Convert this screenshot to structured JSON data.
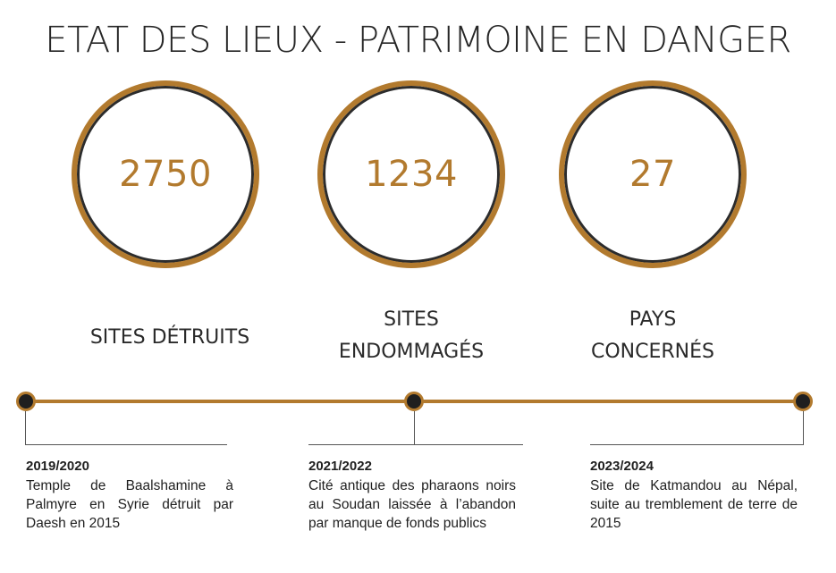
{
  "title": "ETAT DES LIEUX - PATRIMOINE EN DANGER",
  "colors": {
    "accent": "#b27a2e",
    "dark": "#1f1f1f"
  },
  "stats": [
    {
      "value": "2750",
      "label": "SITES DÉTRUITS"
    },
    {
      "value": "1234",
      "label": "SITES\nENDOMMAGÉS"
    },
    {
      "value": "27",
      "label": "PAYS\nCONCERNÉS"
    }
  ],
  "timeline": [
    {
      "year": "2019/2020",
      "description": "Temple de Baalshamine à Palmyre en Syrie détruit par Daesh en 2015"
    },
    {
      "year": "2021/2022",
      "description": "Cité antique des pharaons noirs au Soudan laissée à l’abandon par manque de fonds publics"
    },
    {
      "year": "2023/2024",
      "description": "Site de Katmandou au Népal, suite au tremblement de terre de 2015"
    }
  ]
}
